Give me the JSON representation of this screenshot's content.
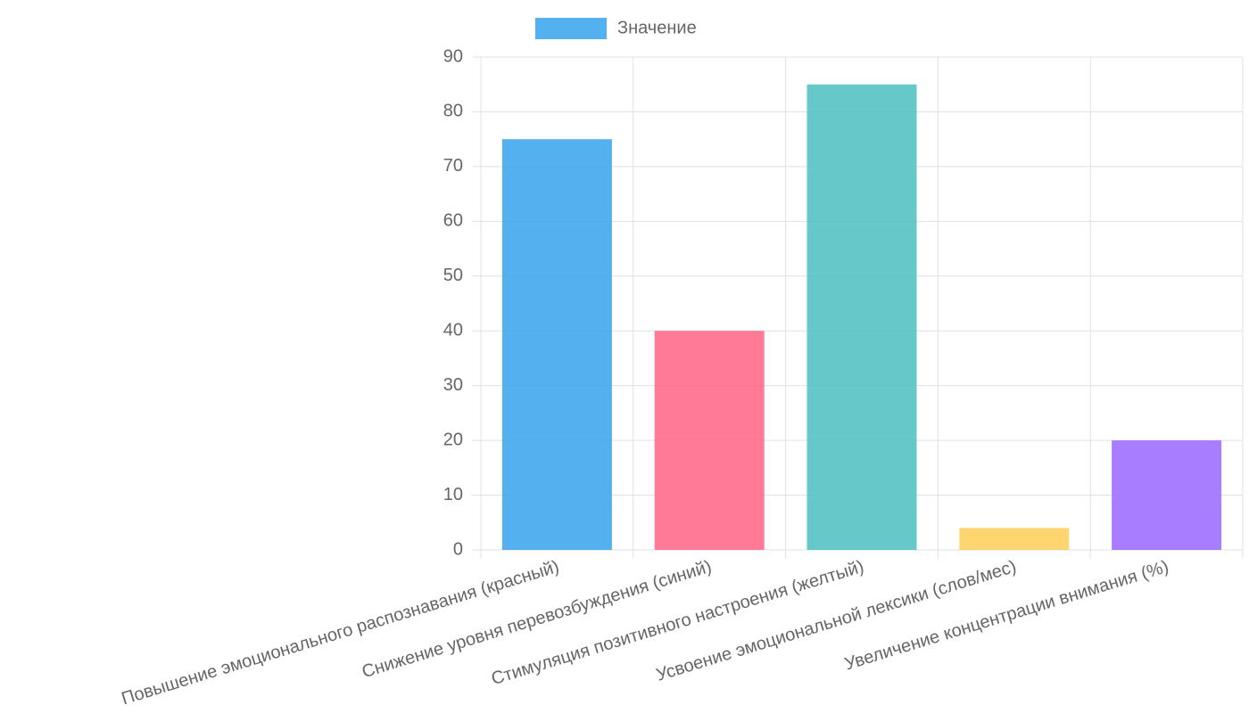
{
  "chart_data": {
    "type": "bar",
    "categories": [
      "Повышение эмоционального распознавания (красный)",
      "Снижение уровня перевозбуждения (синий)",
      "Стимуляция позитивного настроения (желтый)",
      "Усвоение эмоциональной лексики (слов/мес)",
      "Увеличение концентрации внимания (%)"
    ],
    "series": [
      {
        "name": "Значение",
        "values": [
          75,
          40,
          85,
          4,
          20
        ],
        "colors": [
          "rgba(54,162,235,0.85)",
          "rgba(255,99,132,0.85)",
          "rgba(75,192,192,0.85)",
          "rgba(255,206,86,0.85)",
          "rgba(153,102,255,0.85)"
        ]
      }
    ],
    "ylim": [
      0,
      90
    ],
    "yticks": [
      0,
      10,
      20,
      30,
      40,
      50,
      60,
      70,
      80,
      90
    ],
    "grid": true,
    "legend": "top"
  }
}
